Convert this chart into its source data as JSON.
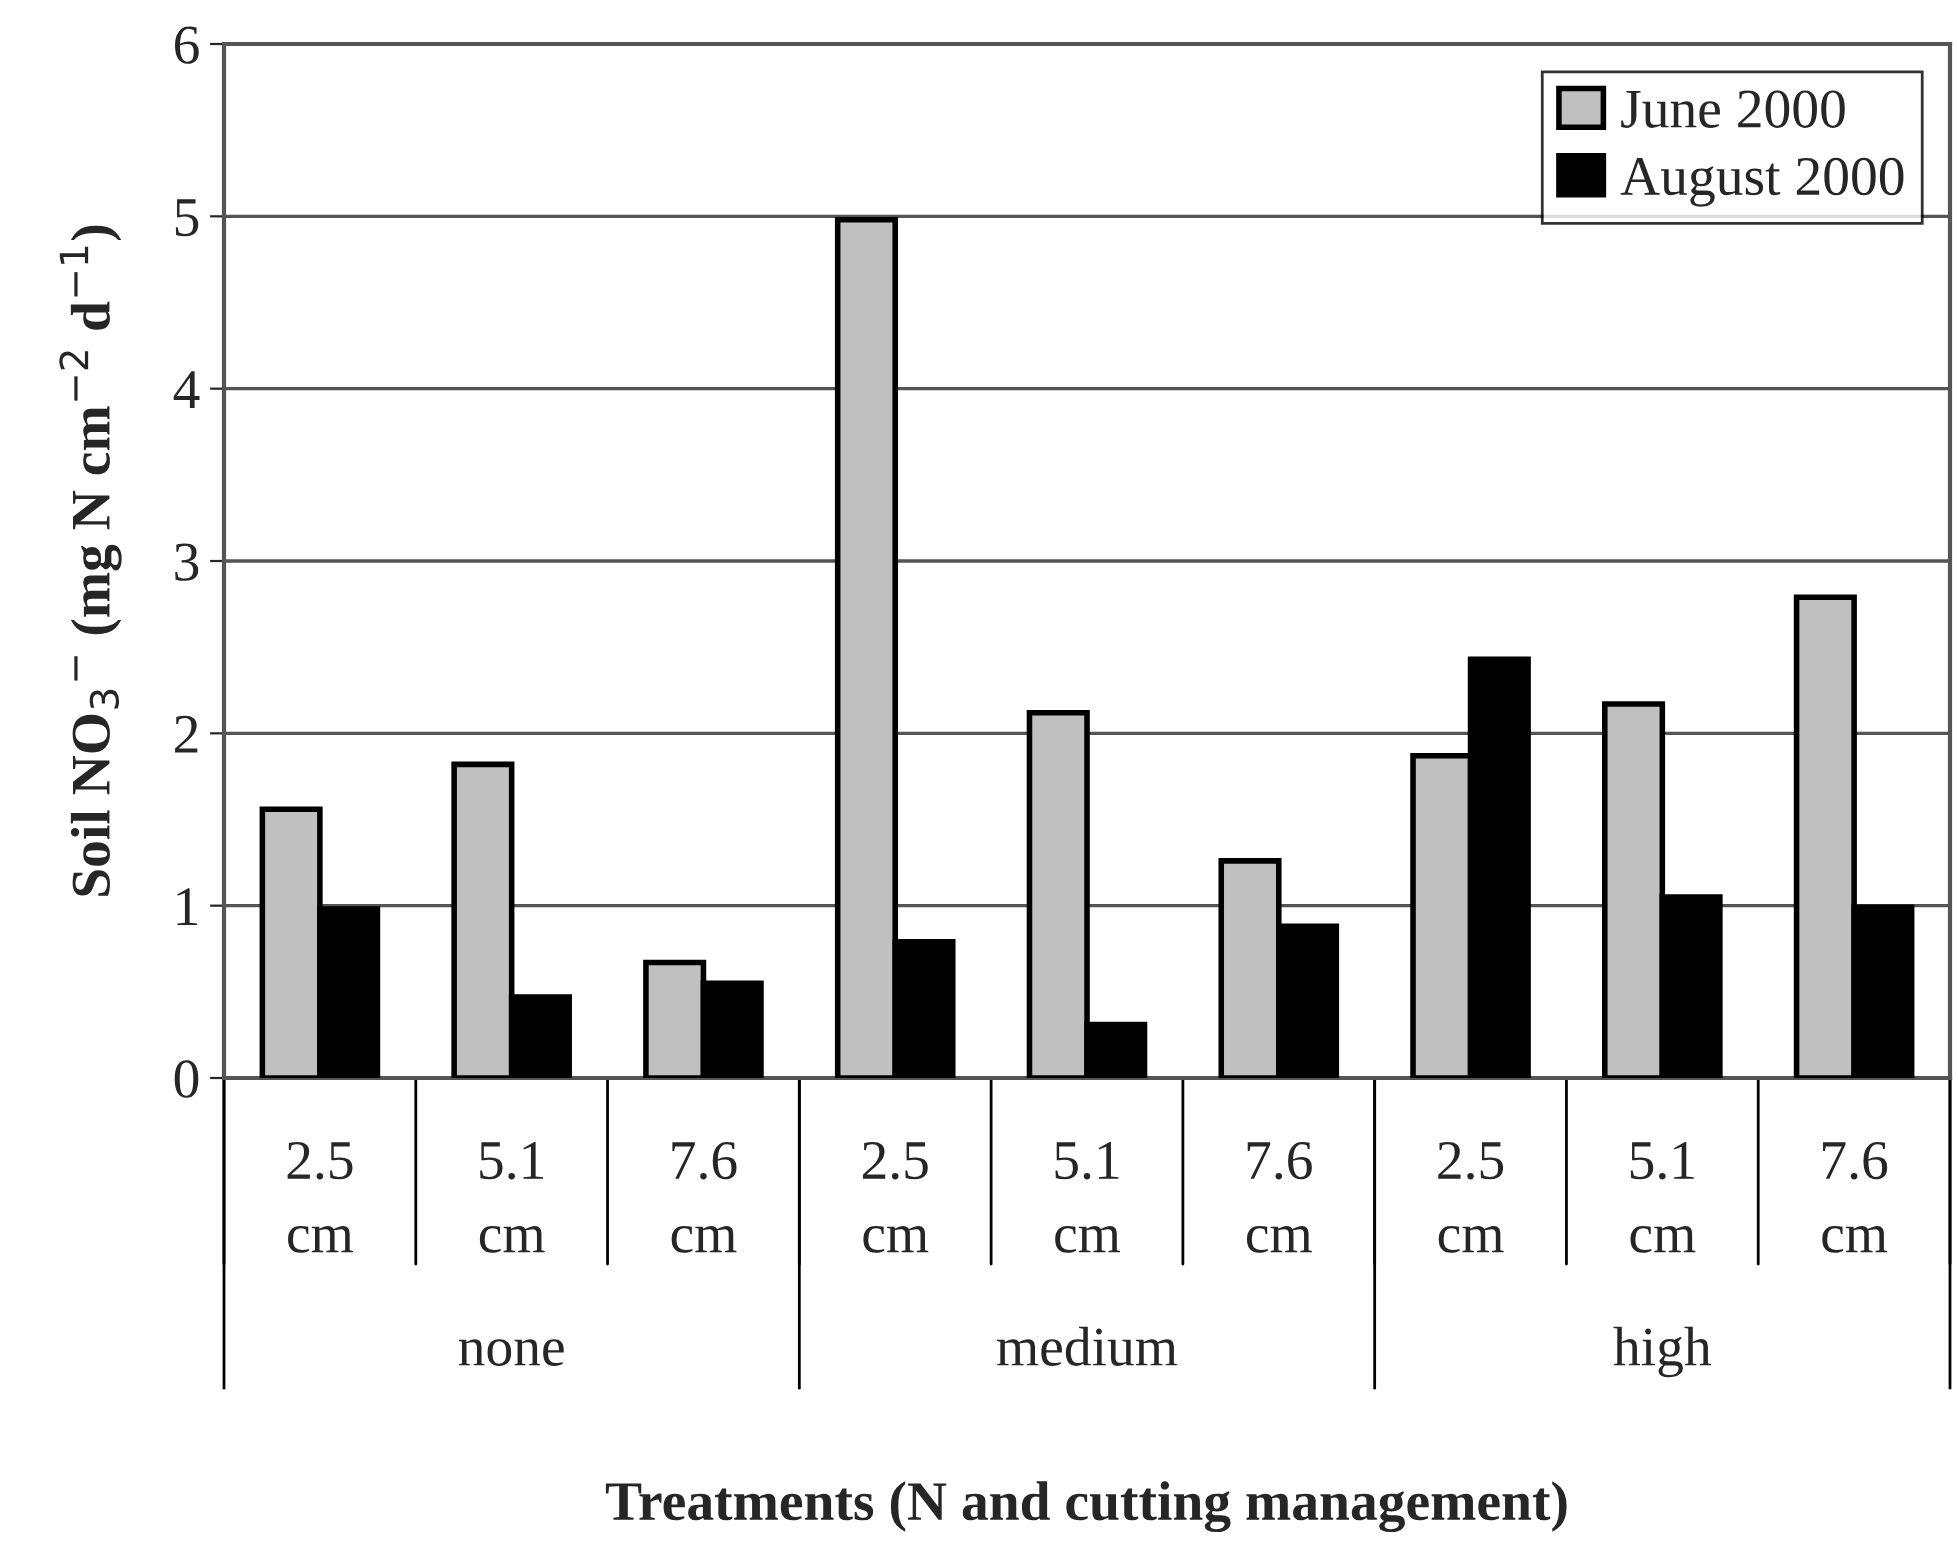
{
  "chart_data": {
    "type": "bar",
    "ylabel": "Soil NO$_{3}$$^{−}$ (mg N cm$^{−2}$ d$^{−1}$)",
    "xlabel": "Treatments (N and cutting management)",
    "categories": [
      "2.5\ncm",
      "5.1\ncm",
      "7.6\ncm",
      "2.5\ncm",
      "5.1\ncm",
      "7.6\ncm",
      "2.5\ncm",
      "5.1\ncm",
      "7.6\ncm"
    ],
    "series": [
      {
        "name": "June 2000",
        "color": "#c0c0c0",
        "values": [
          1.56,
          1.82,
          0.67,
          4.98,
          2.12,
          1.26,
          1.87,
          2.17,
          2.79
        ]
      },
      {
        "name": "August 2000",
        "color": "#000000",
        "values": [
          0.98,
          0.47,
          0.55,
          0.79,
          0.31,
          0.88,
          2.43,
          1.05,
          0.99
        ]
      }
    ],
    "annotations": [
      "none",
      "medium",
      "high"
    ],
    "ylim": [
      0,
      6
    ],
    "yticks": [
      0,
      1,
      2,
      3,
      4,
      5,
      6
    ],
    "grid": "y",
    "legend": "top right"
  }
}
